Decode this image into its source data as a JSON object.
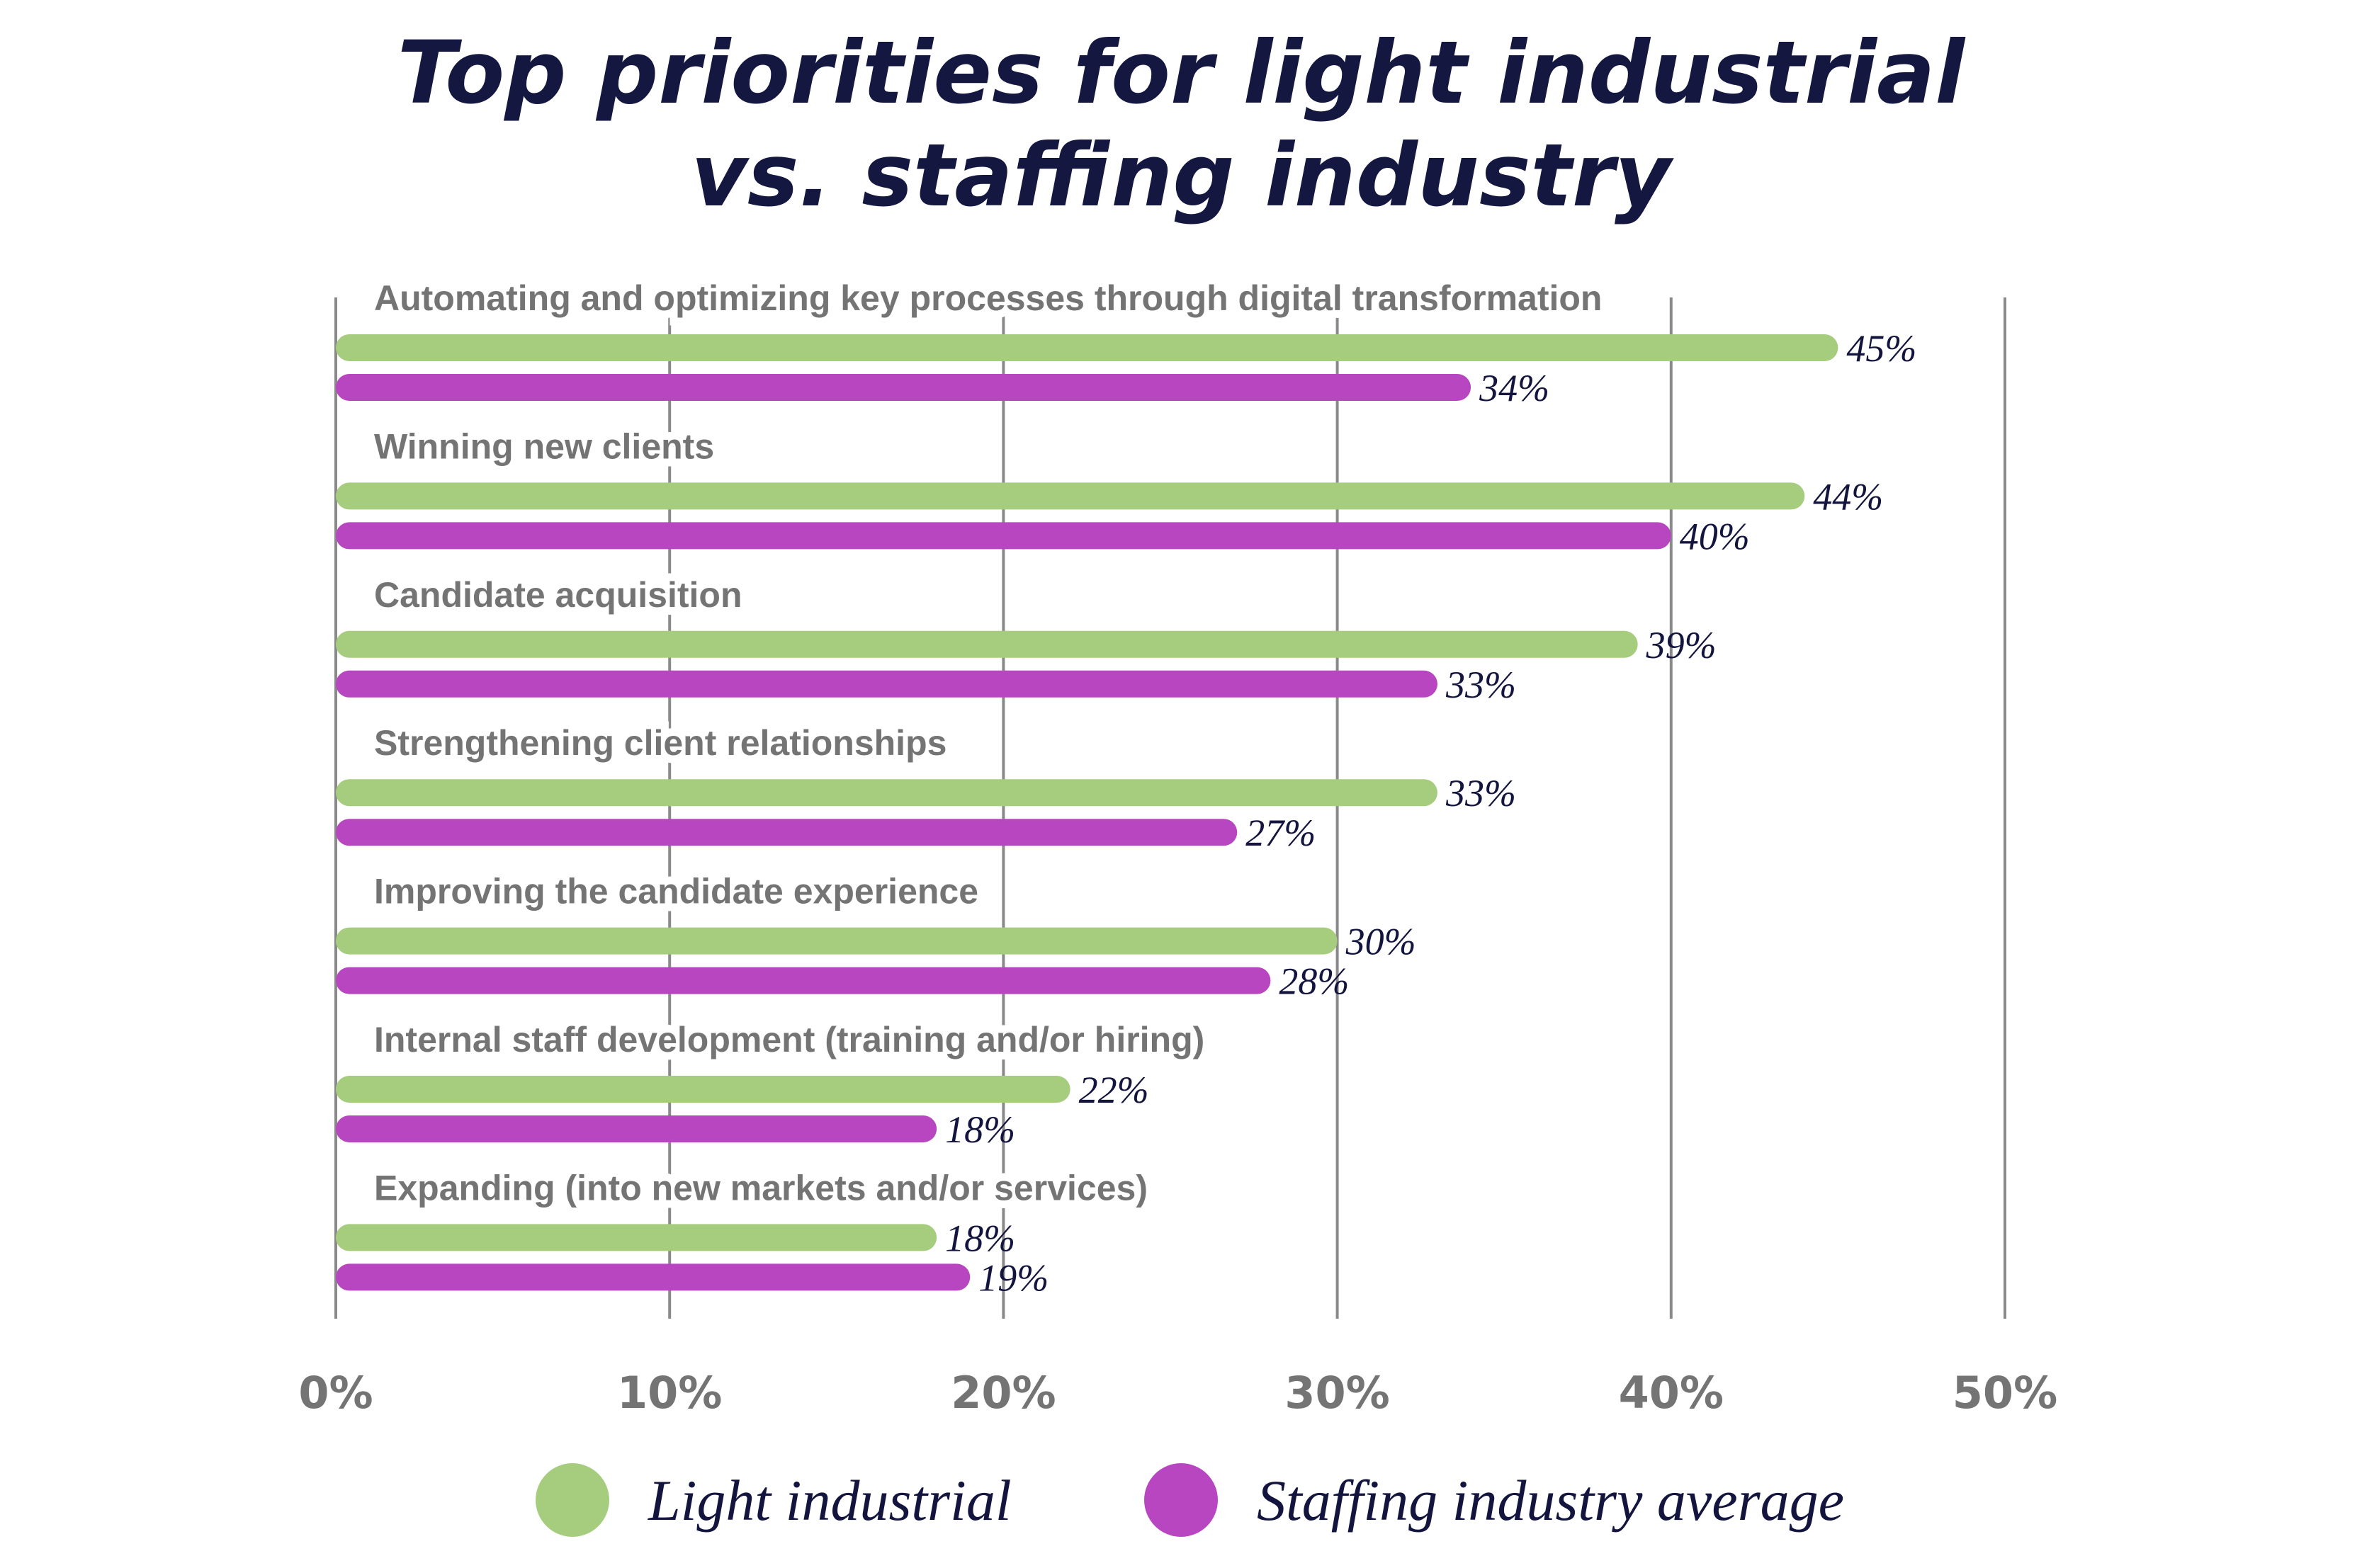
{
  "chart_data": {
    "type": "bar",
    "orientation": "horizontal",
    "title": [
      "Top priorities for light industrial",
      "vs. staffing industry"
    ],
    "categories": [
      "Automating and optimizing key processes through digital transformation",
      "Winning new clients",
      "Candidate acquisition",
      "Strengthening client relationships",
      "Improving the candidate experience",
      "Internal staff development (training and/or hiring)",
      "Expanding (into new markets and/or services)"
    ],
    "series": [
      {
        "name": "Light industrial",
        "color": "#a6cd7e",
        "values": [
          45,
          44,
          39,
          33,
          30,
          22,
          18
        ]
      },
      {
        "name": "Staffing industry average",
        "color": "#b846c1",
        "values": [
          34,
          40,
          33,
          27,
          28,
          18,
          19
        ]
      }
    ],
    "value_labels": [
      [
        "45%",
        "44%",
        "39%",
        "33%",
        "30%",
        "22%",
        "18%"
      ],
      [
        "34%",
        "40%",
        "33%",
        "27%",
        "28%",
        "18%",
        "19%"
      ]
    ],
    "xlim": [
      0,
      50
    ],
    "xticks": [
      0,
      10,
      20,
      30,
      40,
      50
    ],
    "xtick_labels": [
      "0%",
      "10%",
      "20%",
      "30%",
      "40%",
      "50%"
    ],
    "xlabel": "",
    "ylabel": "",
    "grid": "vertical",
    "legend_position": "bottom",
    "gridline_color": "#8a8a8a",
    "title_color": "#14173f"
  }
}
